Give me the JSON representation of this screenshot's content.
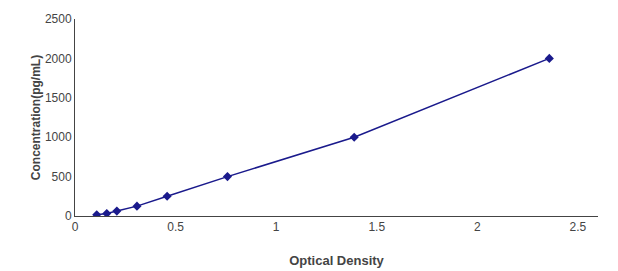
{
  "chart_data": {
    "type": "line",
    "xlabel": "Optical Density",
    "ylabel": "Concentration(pg/mL)",
    "x": [
      0.108,
      0.158,
      0.208,
      0.308,
      0.458,
      0.758,
      1.388,
      2.358
    ],
    "values": [
      15.625,
      31.25,
      62.5,
      125,
      250,
      500,
      1000,
      2000
    ],
    "color": "#1a1a8c",
    "marker": "diamond",
    "line_style": "solid",
    "xlim": [
      0.0,
      2.6
    ],
    "ylim": [
      0,
      2500
    ],
    "xticks": [
      0,
      0.5,
      1,
      1.5,
      2,
      2.5
    ],
    "yticks": [
      0,
      500,
      1000,
      1500,
      2000,
      2500
    ],
    "grid": false
  }
}
